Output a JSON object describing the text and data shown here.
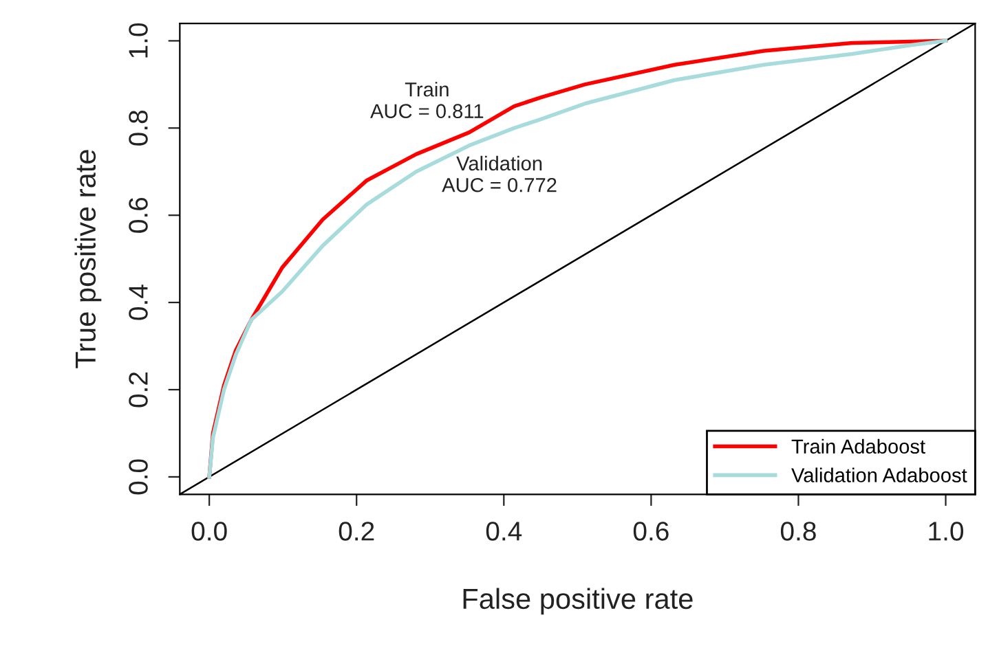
{
  "chart_data": {
    "type": "line",
    "xlabel": "False positive rate",
    "ylabel": "True positive rate",
    "xlim": [
      -0.04,
      1.04
    ],
    "ylim": [
      -0.04,
      1.04
    ],
    "xticks": [
      {
        "value": 0,
        "label": "0.0"
      },
      0.2,
      0.4,
      0.6,
      0.8,
      {
        "value": 1,
        "label": "1.0"
      }
    ],
    "yticks": [
      {
        "value": 0,
        "label": "0.0"
      },
      0.2,
      0.4,
      0.6,
      0.8,
      {
        "value": 1,
        "label": "1.0"
      }
    ],
    "grid": false,
    "legend": "bottom right",
    "marker": "none",
    "line_style": "solid",
    "annotations": [
      "Train\nAUC = 0.811",
      "Validation\nAUC = 0.772"
    ],
    "series": [
      {
        "name": "Train Adaboost",
        "color": "#ff0000",
        "x": [
          0,
          0.005,
          0.02,
          0.036,
          0.057,
          0.099,
          0.154,
          0.214,
          0.281,
          0.353,
          0.414,
          0.45,
          0.51,
          0.632,
          0.753,
          0.873,
          1
        ],
        "values": [
          0,
          0.1,
          0.21,
          0.29,
          0.36,
          0.48,
          0.59,
          0.68,
          0.74,
          0.79,
          0.85,
          0.87,
          0.9,
          0.945,
          0.977,
          0.995,
          1
        ]
      },
      {
        "name": "Validation Adaboost",
        "color": "#a8dcdc",
        "x": [
          0,
          0.005,
          0.02,
          0.036,
          0.057,
          0.099,
          0.154,
          0.214,
          0.281,
          0.353,
          0.414,
          0.45,
          0.51,
          0.632,
          0.753,
          0.873,
          0.952,
          1
        ],
        "values": [
          0,
          0.09,
          0.2,
          0.28,
          0.36,
          0.425,
          0.53,
          0.625,
          0.7,
          0.76,
          0.8,
          0.82,
          0.856,
          0.91,
          0.945,
          0.97,
          0.99,
          1
        ]
      },
      {
        "color": "#000000",
        "x": [
          -0.04,
          1.04
        ],
        "values": [
          -0.04,
          1.04
        ]
      }
    ]
  }
}
